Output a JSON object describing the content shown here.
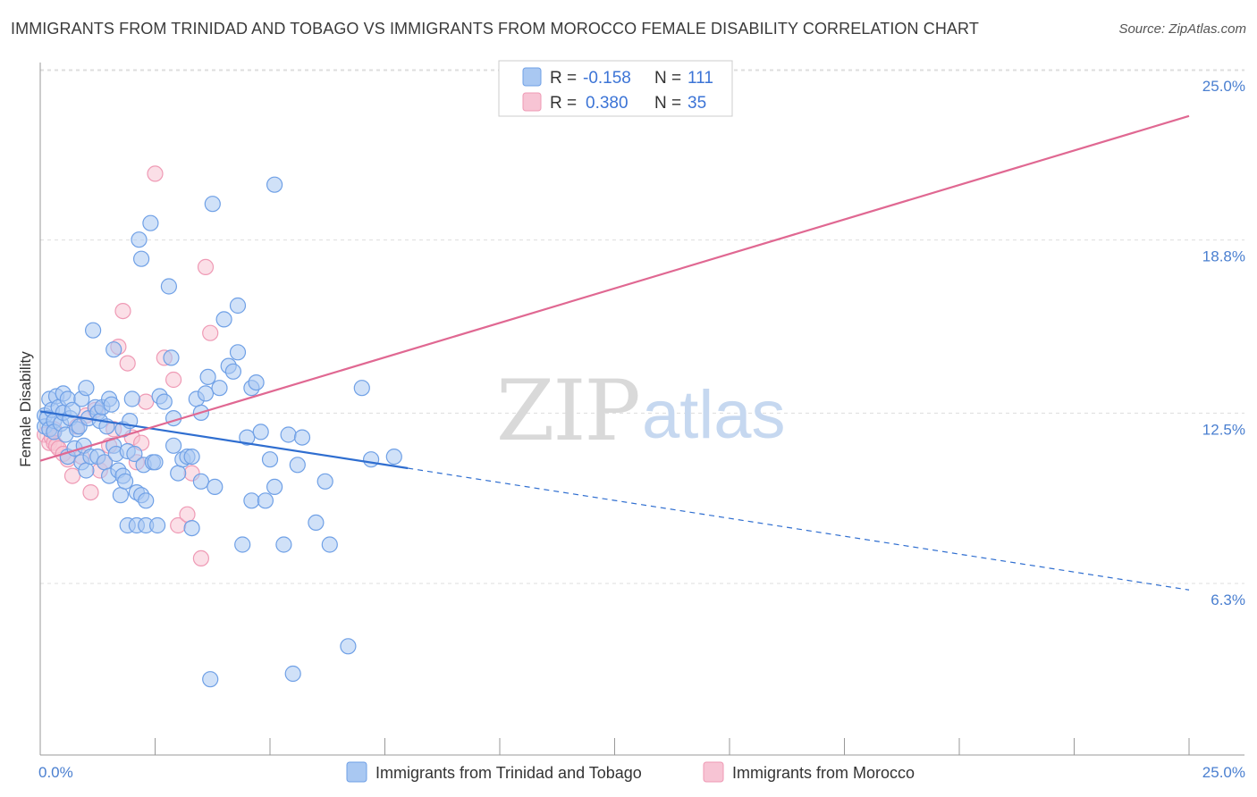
{
  "chart_data": {
    "type": "scatter",
    "title": "IMMIGRANTS FROM TRINIDAD AND TOBAGO VS IMMIGRANTS FROM MOROCCO FEMALE DISABILITY CORRELATION CHART",
    "source": "Source: ZipAtlas.com",
    "watermark": {
      "zip": "ZIP",
      "atlas": "atlas"
    },
    "xlabel": "",
    "ylabel": "Female Disability",
    "xlim": [
      0,
      25
    ],
    "ylim": [
      0,
      26
    ],
    "x_ticks": [
      0,
      2.5,
      5,
      7.5,
      10,
      12.5,
      15,
      17.5,
      20,
      22.5,
      25
    ],
    "x_tick_labels": {
      "min": "0.0%",
      "max": "25.0%"
    },
    "y_ticks": [
      {
        "value": 6.3,
        "label": "6.3%"
      },
      {
        "value": 12.5,
        "label": "12.5%"
      },
      {
        "value": 18.8,
        "label": "18.8%"
      },
      {
        "value": 25.0,
        "label": "25.0%"
      }
    ],
    "grid": true,
    "legend": {
      "position": "top-center",
      "entries": [
        {
          "r_label": "R =",
          "r_value": "-0.158",
          "n_label": "N =",
          "n_value": "111"
        },
        {
          "r_label": "R =",
          "r_value": "0.380",
          "n_label": "N =",
          "n_value": "35"
        }
      ]
    },
    "series": [
      {
        "name": "Immigrants from Trinidad and Tobago",
        "color": "#6fa0e6",
        "fill": "#a9c8f2",
        "line_color": "#2f6ed0",
        "trend": {
          "x0": 0,
          "y0": 13.15,
          "x1": 8.0,
          "y1": 11.08,
          "dash_to_x": 25,
          "dash_to_y": 6.65
        },
        "points": [
          [
            0.1,
            13.0
          ],
          [
            0.1,
            12.6
          ],
          [
            0.15,
            12.9
          ],
          [
            0.2,
            12.5
          ],
          [
            0.2,
            13.6
          ],
          [
            0.25,
            13.2
          ],
          [
            0.3,
            12.8
          ],
          [
            0.3,
            12.4
          ],
          [
            0.35,
            13.7
          ],
          [
            0.4,
            13.3
          ],
          [
            0.45,
            12.7
          ],
          [
            0.5,
            13.8
          ],
          [
            0.5,
            13.1
          ],
          [
            0.55,
            12.3
          ],
          [
            0.6,
            13.6
          ],
          [
            0.6,
            11.5
          ],
          [
            0.65,
            12.9
          ],
          [
            0.7,
            13.2
          ],
          [
            0.75,
            11.8
          ],
          [
            0.8,
            12.5
          ],
          [
            0.85,
            12.6
          ],
          [
            0.9,
            13.6
          ],
          [
            0.9,
            11.3
          ],
          [
            0.95,
            11.9
          ],
          [
            1.0,
            14.0
          ],
          [
            1.0,
            11.0
          ],
          [
            1.05,
            12.9
          ],
          [
            1.1,
            11.5
          ],
          [
            1.15,
            16.1
          ],
          [
            1.2,
            13.3
          ],
          [
            1.25,
            13.1
          ],
          [
            1.25,
            11.5
          ],
          [
            1.3,
            12.8
          ],
          [
            1.35,
            13.3
          ],
          [
            1.4,
            11.3
          ],
          [
            1.45,
            12.6
          ],
          [
            1.5,
            13.6
          ],
          [
            1.5,
            10.8
          ],
          [
            1.55,
            13.4
          ],
          [
            1.6,
            11.9
          ],
          [
            1.6,
            15.4
          ],
          [
            1.65,
            11.6
          ],
          [
            1.7,
            11.0
          ],
          [
            1.75,
            10.1
          ],
          [
            1.8,
            12.5
          ],
          [
            1.8,
            10.8
          ],
          [
            1.85,
            10.6
          ],
          [
            1.9,
            11.7
          ],
          [
            1.9,
            9.0
          ],
          [
            1.95,
            12.8
          ],
          [
            2.0,
            13.6
          ],
          [
            2.05,
            11.6
          ],
          [
            2.1,
            10.2
          ],
          [
            2.1,
            9.0
          ],
          [
            2.15,
            19.4
          ],
          [
            2.2,
            18.7
          ],
          [
            2.2,
            10.1
          ],
          [
            2.25,
            11.2
          ],
          [
            2.3,
            9.9
          ],
          [
            2.3,
            9.0
          ],
          [
            2.4,
            20.0
          ],
          [
            2.45,
            11.3
          ],
          [
            2.5,
            11.3
          ],
          [
            2.55,
            9.0
          ],
          [
            2.6,
            13.7
          ],
          [
            2.7,
            13.5
          ],
          [
            2.8,
            17.7
          ],
          [
            2.85,
            15.1
          ],
          [
            2.9,
            12.9
          ],
          [
            2.9,
            11.9
          ],
          [
            3.0,
            10.9
          ],
          [
            3.1,
            11.4
          ],
          [
            3.2,
            11.5
          ],
          [
            3.3,
            8.9
          ],
          [
            3.3,
            11.5
          ],
          [
            3.4,
            13.6
          ],
          [
            3.5,
            13.1
          ],
          [
            3.5,
            10.6
          ],
          [
            3.6,
            13.8
          ],
          [
            3.65,
            14.4
          ],
          [
            3.7,
            3.4
          ],
          [
            3.75,
            20.7
          ],
          [
            3.8,
            10.4
          ],
          [
            3.9,
            14.0
          ],
          [
            4.0,
            16.5
          ],
          [
            4.1,
            14.8
          ],
          [
            4.2,
            14.6
          ],
          [
            4.3,
            15.3
          ],
          [
            4.3,
            17.0
          ],
          [
            4.4,
            8.3
          ],
          [
            4.5,
            12.2
          ],
          [
            4.6,
            9.9
          ],
          [
            4.6,
            14.0
          ],
          [
            4.7,
            14.2
          ],
          [
            4.8,
            12.4
          ],
          [
            4.9,
            9.9
          ],
          [
            5.0,
            11.4
          ],
          [
            5.1,
            10.4
          ],
          [
            5.1,
            21.4
          ],
          [
            5.3,
            8.3
          ],
          [
            5.4,
            12.3
          ],
          [
            5.5,
            3.6
          ],
          [
            5.6,
            11.2
          ],
          [
            6.0,
            9.1
          ],
          [
            6.2,
            10.6
          ],
          [
            7.0,
            14.0
          ],
          [
            7.2,
            11.4
          ],
          [
            6.3,
            8.3
          ],
          [
            6.7,
            4.6
          ],
          [
            7.7,
            11.5
          ],
          [
            5.7,
            12.2
          ]
        ]
      },
      {
        "name": "Immigrants from Morocco",
        "color": "#ef9ab5",
        "fill": "#f7c4d4",
        "line_color": "#e06892",
        "trend": {
          "x0": 0,
          "y0": 11.35,
          "x1": 25,
          "y1": 23.9
        },
        "points": [
          [
            0.1,
            12.3
          ],
          [
            0.2,
            12.0
          ],
          [
            0.25,
            12.2
          ],
          [
            0.3,
            12.5
          ],
          [
            0.3,
            12.0
          ],
          [
            0.35,
            11.9
          ],
          [
            0.4,
            11.8
          ],
          [
            0.5,
            11.6
          ],
          [
            0.6,
            11.4
          ],
          [
            0.7,
            10.8
          ],
          [
            0.8,
            12.6
          ],
          [
            0.9,
            11.5
          ],
          [
            1.0,
            13.0
          ],
          [
            1.1,
            10.2
          ],
          [
            1.2,
            13.2
          ],
          [
            1.3,
            11.0
          ],
          [
            1.4,
            11.3
          ],
          [
            1.5,
            11.9
          ],
          [
            1.6,
            12.5
          ],
          [
            1.7,
            15.5
          ],
          [
            1.8,
            16.8
          ],
          [
            1.9,
            14.9
          ],
          [
            2.0,
            12.2
          ],
          [
            2.1,
            11.3
          ],
          [
            2.2,
            12.0
          ],
          [
            2.3,
            13.5
          ],
          [
            2.5,
            21.8
          ],
          [
            2.7,
            15.1
          ],
          [
            2.9,
            14.3
          ],
          [
            3.0,
            9.0
          ],
          [
            3.2,
            9.4
          ],
          [
            3.3,
            10.9
          ],
          [
            3.5,
            7.8
          ],
          [
            3.6,
            18.4
          ],
          [
            3.7,
            16.0
          ]
        ]
      }
    ]
  },
  "bottom_legend": [
    {
      "label": "Immigrants from Trinidad and Tobago"
    },
    {
      "label": "Immigrants from Morocco"
    }
  ]
}
